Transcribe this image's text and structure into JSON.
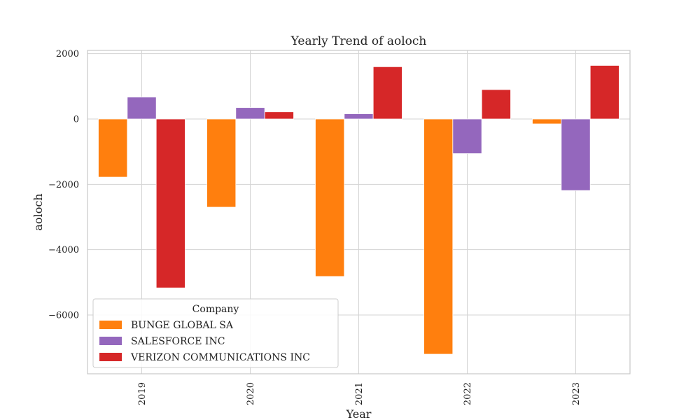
{
  "chart_data": {
    "type": "bar",
    "title": "Yearly Trend of aoloch",
    "xlabel": "Year",
    "ylabel": "aoloch",
    "categories": [
      "2019",
      "2020",
      "2021",
      "2022",
      "2023"
    ],
    "series": [
      {
        "name": "BUNGE GLOBAL SA",
        "color": "#ff7f0e",
        "values": [
          -1780,
          -2700,
          -4820,
          -7200,
          -150
        ]
      },
      {
        "name": "SALESFORCE INC",
        "color": "#9467bd",
        "values": [
          670,
          350,
          160,
          -1060,
          -2190
        ]
      },
      {
        "name": "VERIZON COMMUNICATIONS INC",
        "color": "#d62728",
        "values": [
          -5170,
          220,
          1600,
          900,
          1640
        ]
      }
    ],
    "ylim": [
      -7800,
      2100
    ],
    "yticks": [
      2000,
      0,
      -2000,
      -4000,
      -6000
    ],
    "ytick_labels": [
      "2000",
      "0",
      "−2000",
      "−4000",
      "−6000"
    ],
    "grid": true,
    "legend": {
      "title": "Company",
      "placement": "lower-left"
    }
  }
}
